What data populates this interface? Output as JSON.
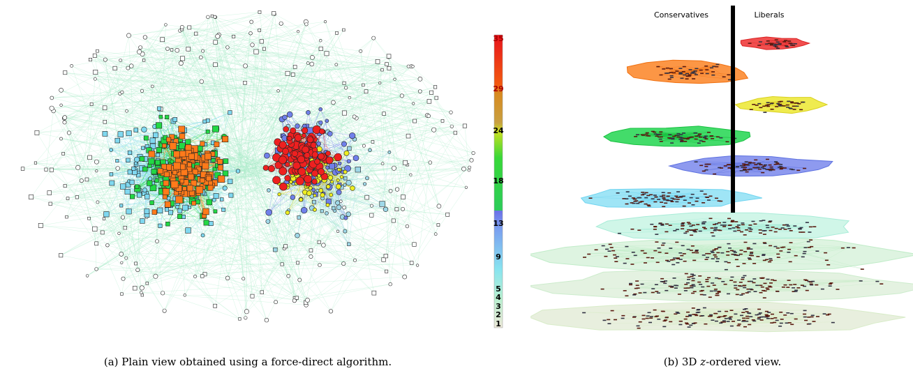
{
  "figure": {
    "colorbar": {
      "labels": [
        "35",
        "29",
        "24",
        "18",
        "13",
        "9",
        "5",
        "4",
        "3",
        "2",
        "1"
      ]
    },
    "panel_b": {
      "left_label": "Conservatives",
      "right_label": "Liberals"
    },
    "caption_a": "(a) Plain view obtained using a force-direct algorithm.",
    "caption_b": [
      "(b) 3D ",
      "z",
      "-ordered view."
    ]
  }
}
